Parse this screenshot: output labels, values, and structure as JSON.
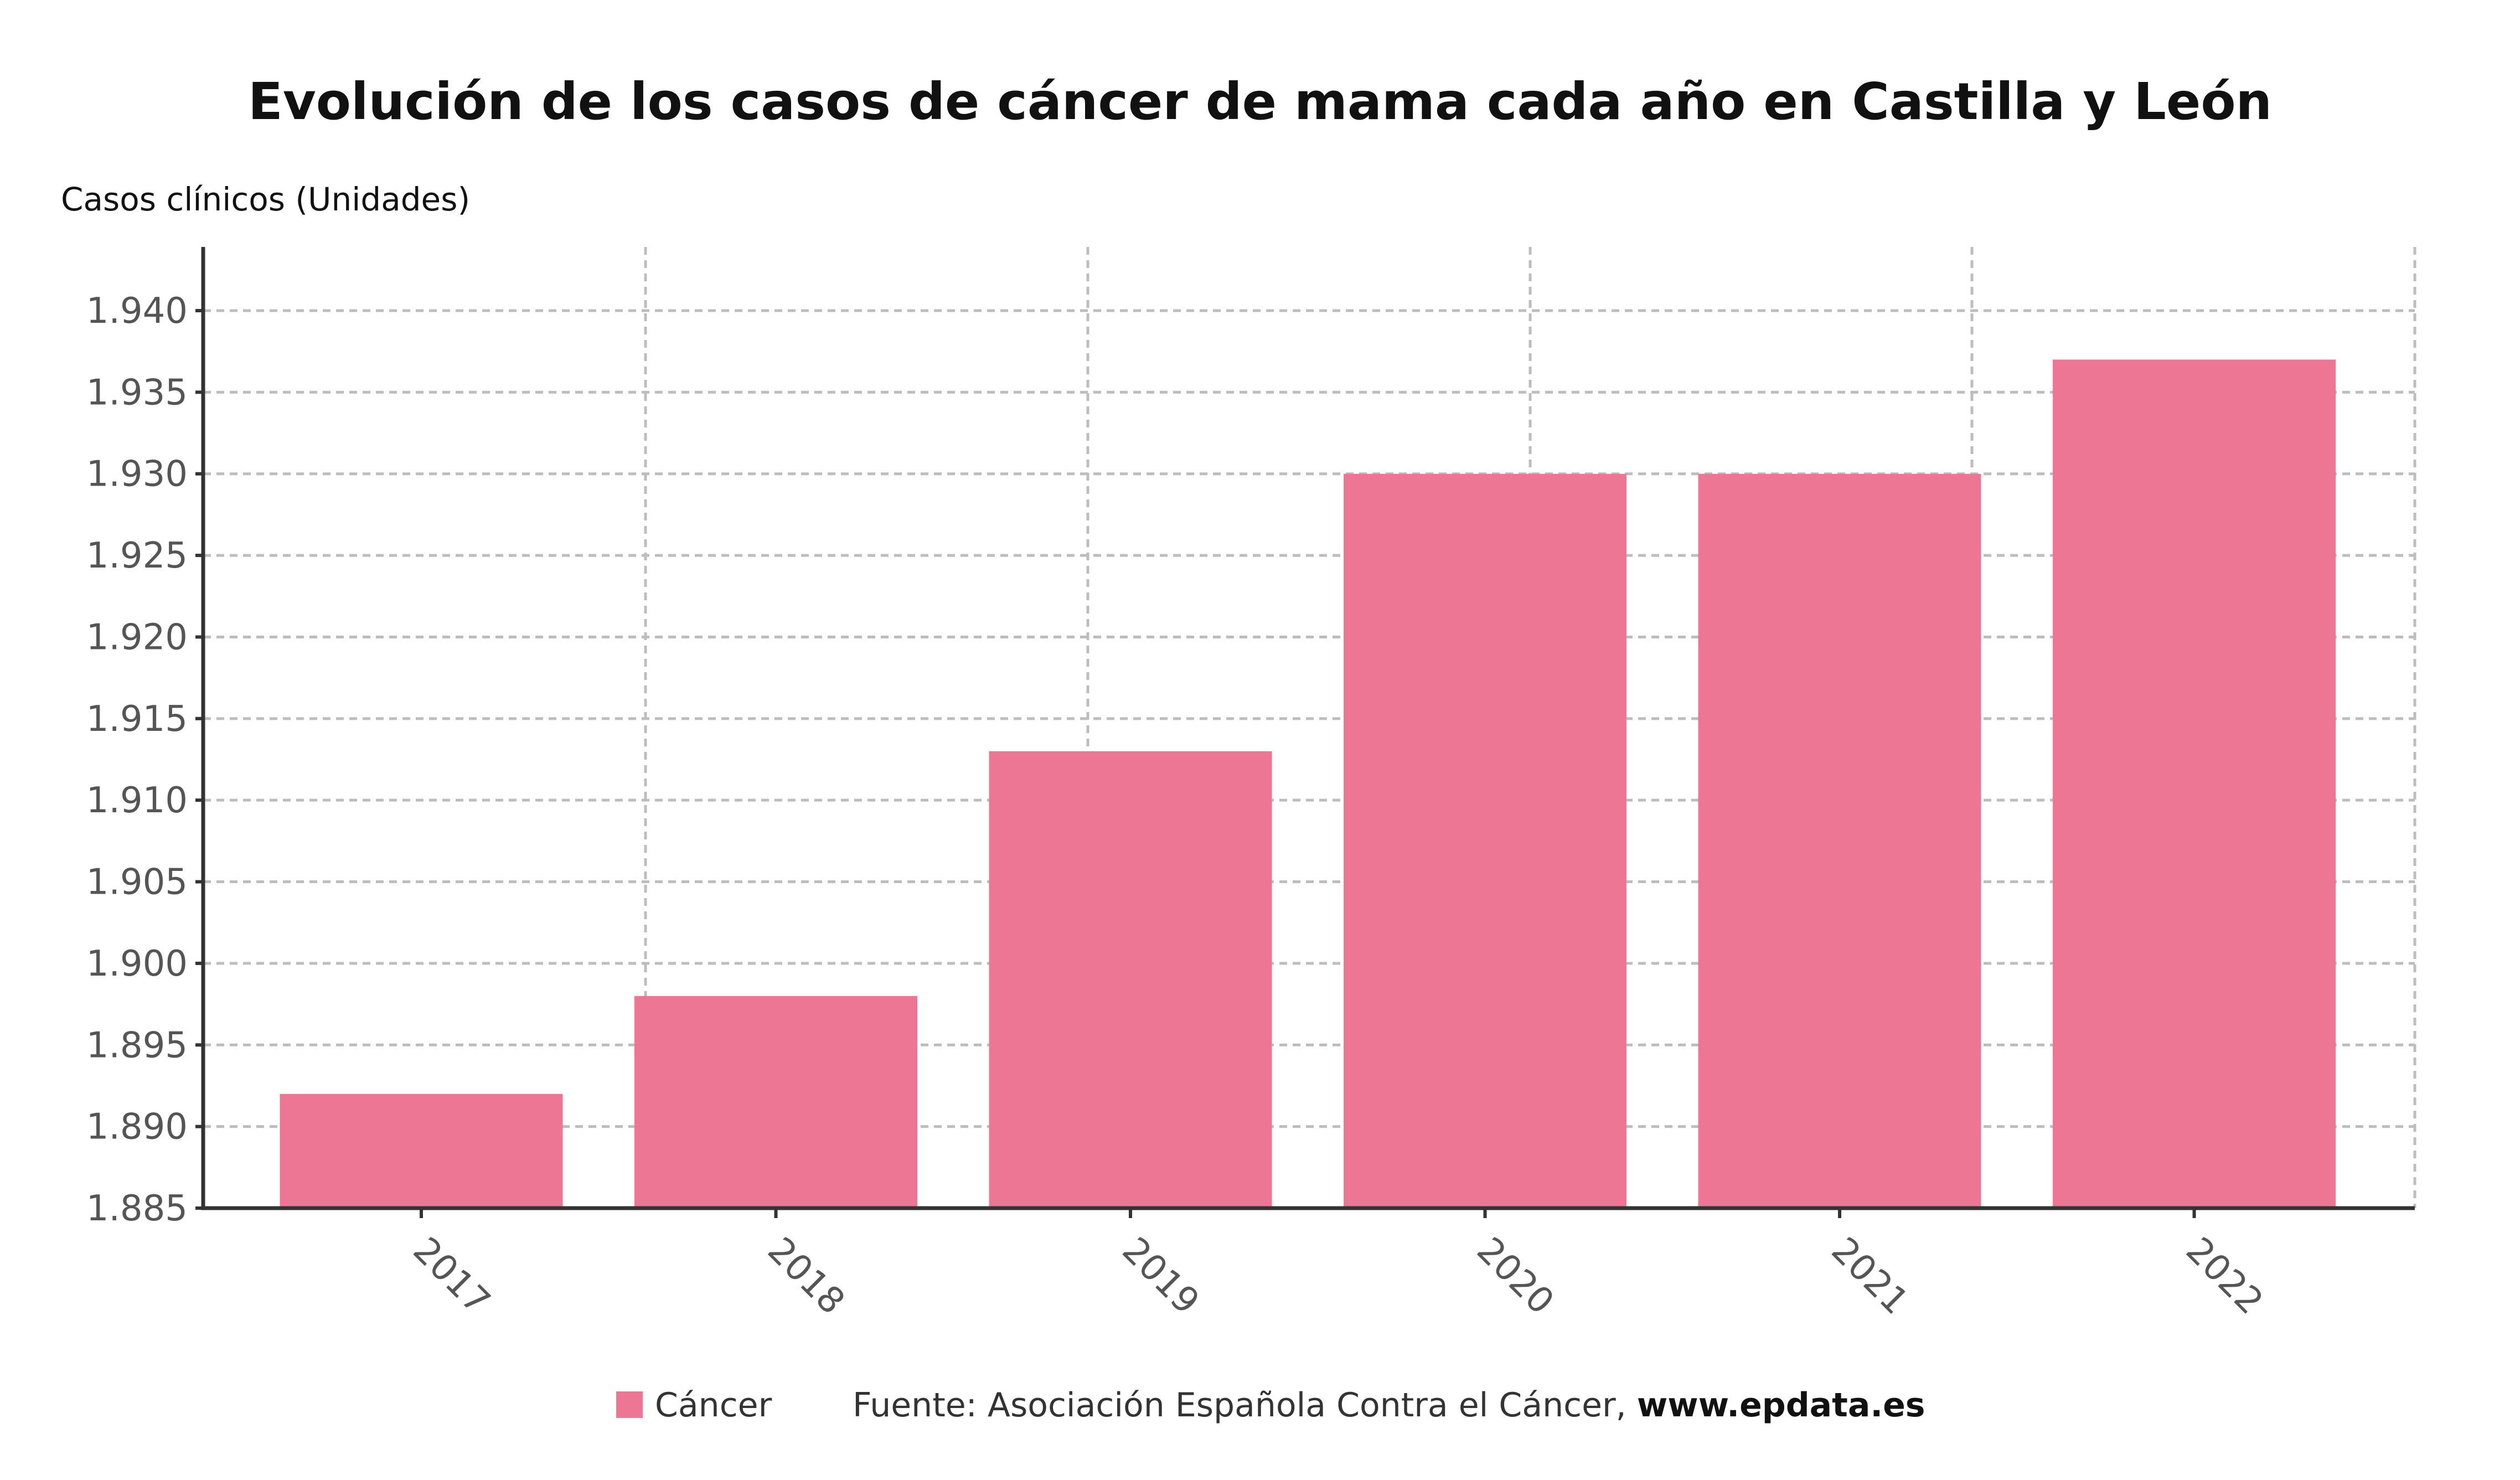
{
  "chart_data": {
    "type": "bar",
    "title": "Evolución de los casos de cáncer de mama cada año en Castilla y León",
    "ylabel": "Casos clínicos (Unidades)",
    "xlabel": "",
    "categories": [
      "2017",
      "2018",
      "2019",
      "2020",
      "2021",
      "2022"
    ],
    "series": [
      {
        "name": "Cáncer",
        "color": "#EC7694",
        "values": [
          1892,
          1898,
          1913,
          1930,
          1930,
          1937
        ]
      }
    ],
    "ylim": [
      1885,
      1943
    ],
    "yticks": [
      1885,
      1890,
      1895,
      1900,
      1905,
      1910,
      1915,
      1920,
      1925,
      1930,
      1935,
      1940
    ],
    "ytick_labels": [
      "1.885",
      "1.890",
      "1.895",
      "1.900",
      "1.905",
      "1.910",
      "1.915",
      "1.920",
      "1.925",
      "1.930",
      "1.935",
      "1.940"
    ],
    "grid": true,
    "legend_position": "bottom",
    "source_prefix": "Fuente: Asociación Española Contra el Cáncer, ",
    "source_url": "www.epdata.es"
  }
}
